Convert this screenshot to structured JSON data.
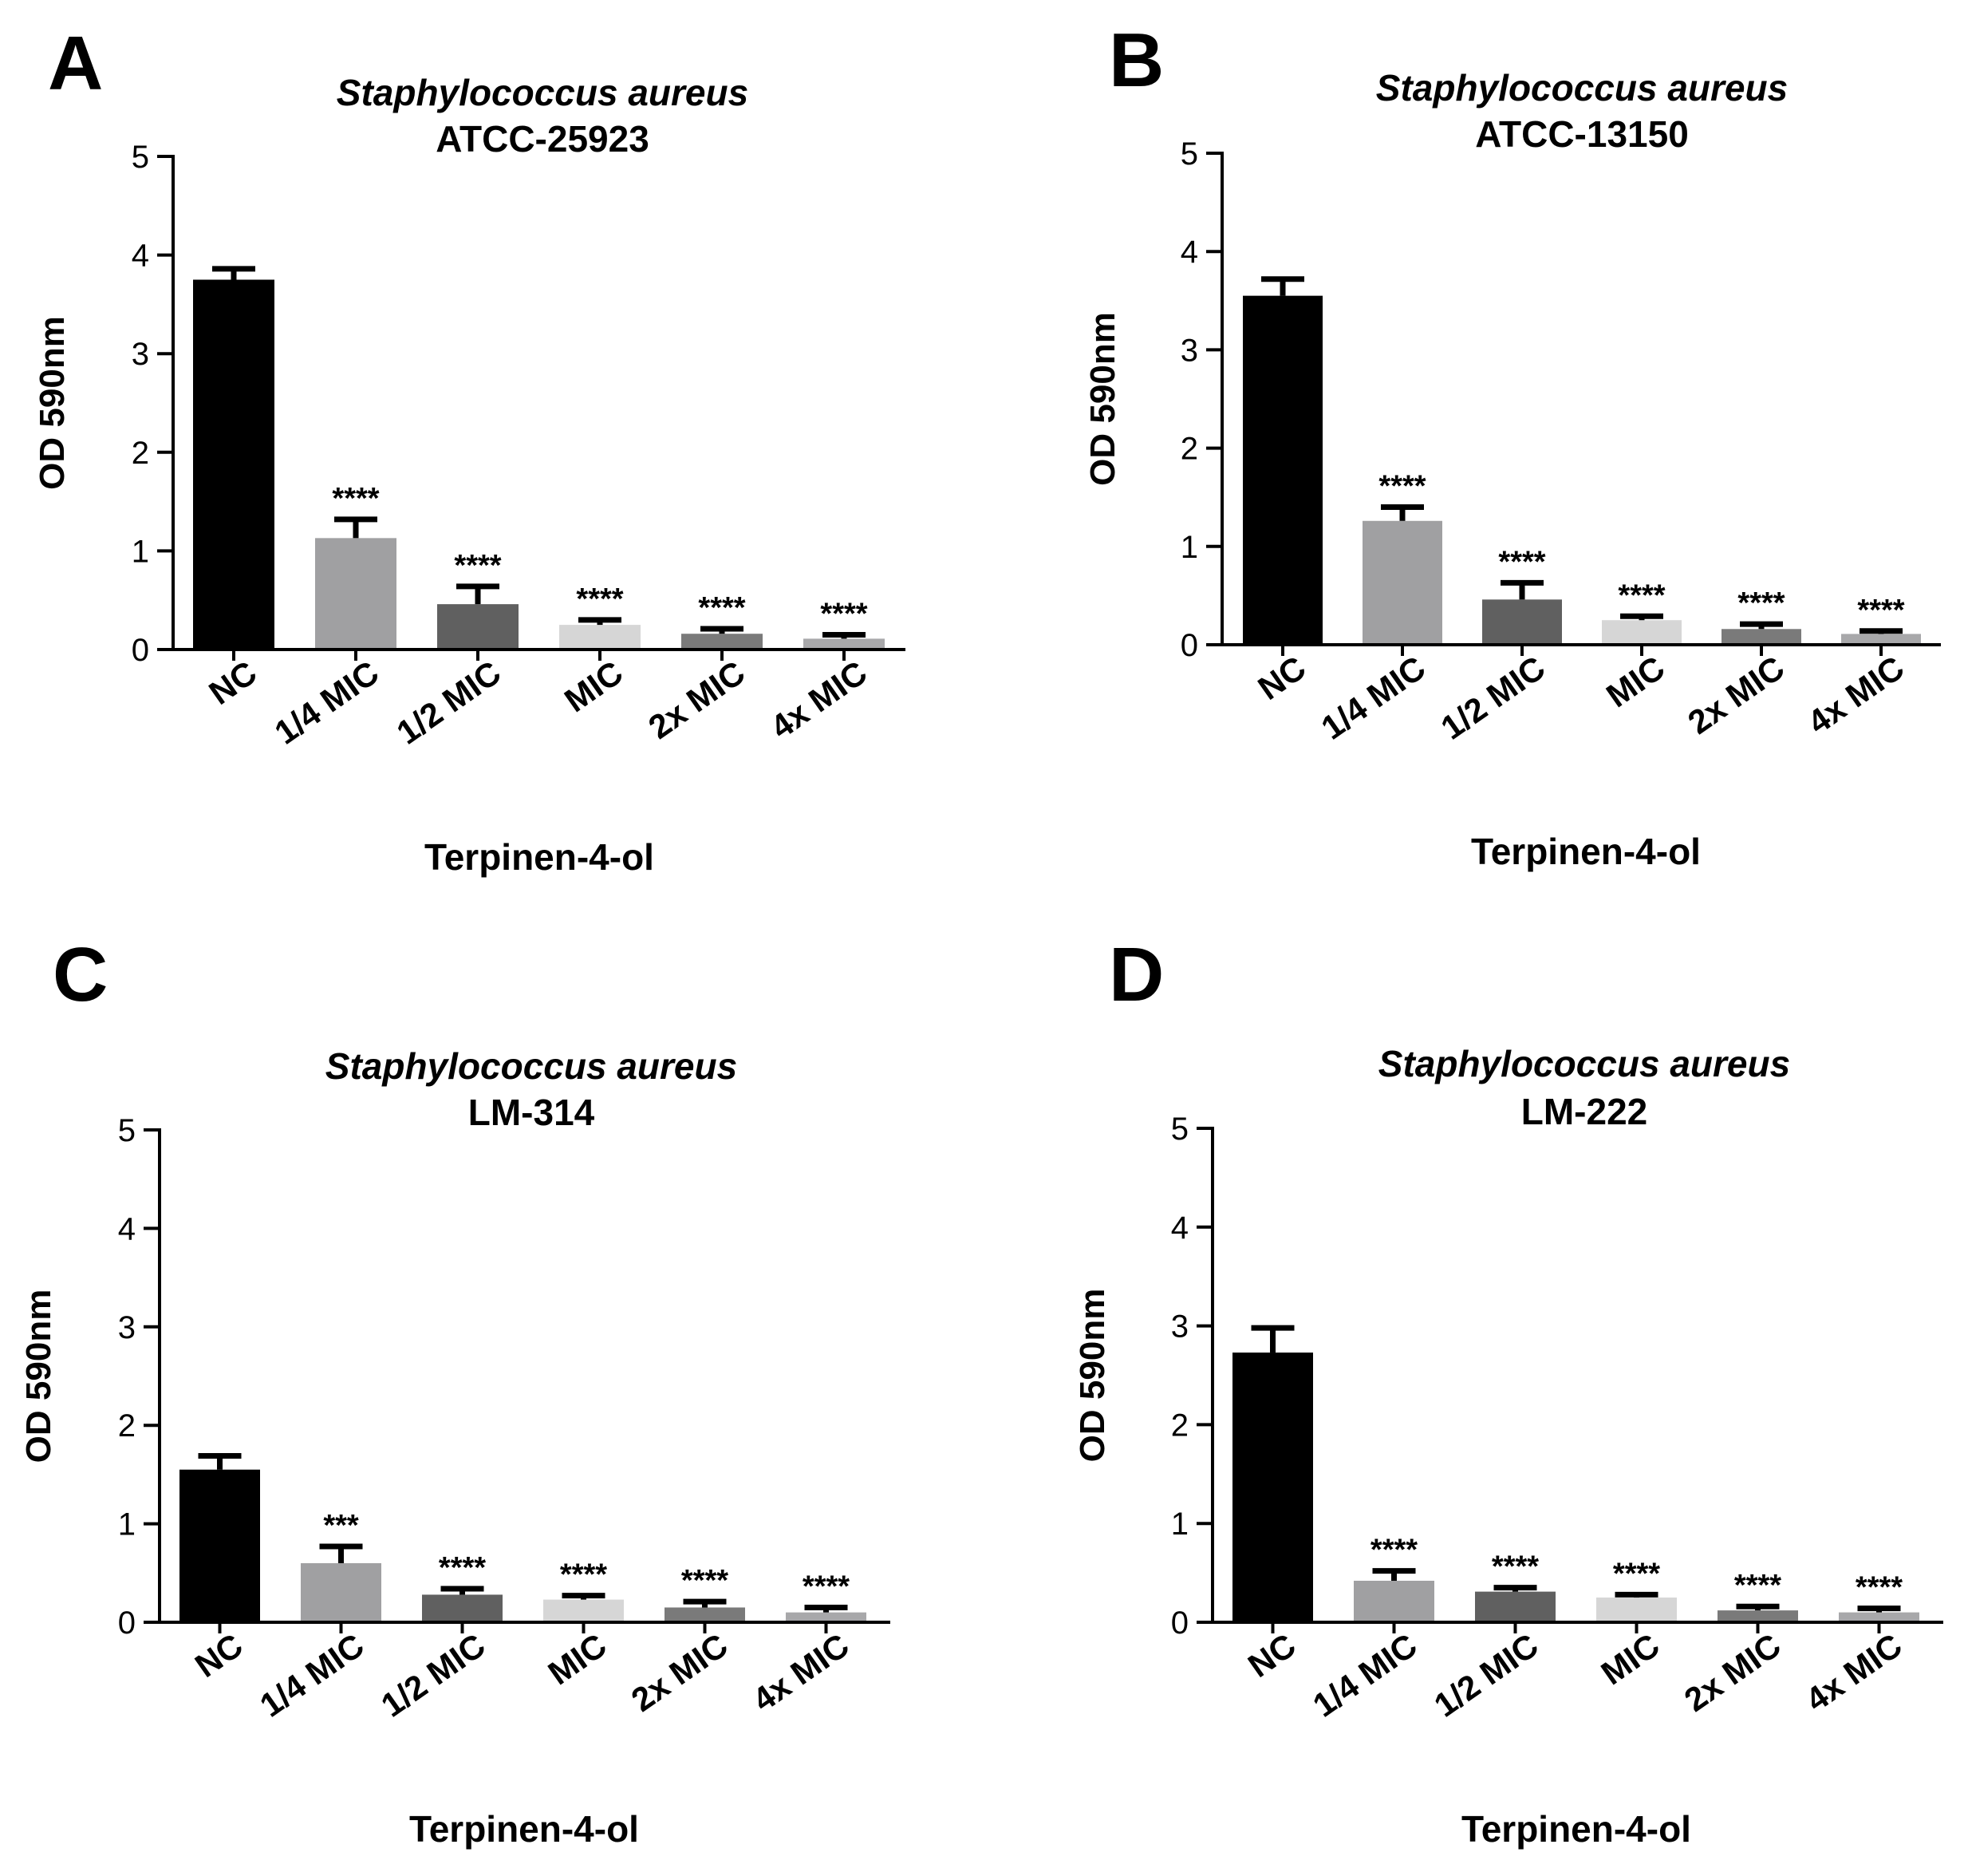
{
  "figure": {
    "bar_colors": [
      "#000000",
      "#a0a0a2",
      "#606060",
      "#d6d6d6",
      "#7a7a7a",
      "#a8a8aa"
    ]
  },
  "chart_data": [
    {
      "panel": "A",
      "type": "bar",
      "title_species": "Staphylococcus aureus",
      "title_strain": "ATCC-25923",
      "ylabel": "OD 590nm",
      "xlabel": "Terpinen-4-ol",
      "ylim": [
        0,
        5
      ],
      "yticks": [
        "0",
        "1",
        "2",
        "3",
        "4",
        "5"
      ],
      "categories": [
        "NC",
        "1/4 MIC",
        "1/2 MIC",
        "MIC",
        "2x MIC",
        "4x MIC"
      ],
      "values": [
        3.75,
        1.13,
        0.46,
        0.25,
        0.16,
        0.11
      ],
      "errors": [
        0.11,
        0.19,
        0.18,
        0.05,
        0.05,
        0.04
      ],
      "significance": [
        "",
        "****",
        "****",
        "****",
        "****",
        "****"
      ]
    },
    {
      "panel": "B",
      "type": "bar",
      "title_species": "Staphylococcus aureus",
      "title_strain": "ATCC-13150",
      "ylabel": "OD 590nm",
      "xlabel": "Terpinen-4-ol",
      "ylim": [
        0,
        5
      ],
      "yticks": [
        "0",
        "1",
        "2",
        "3",
        "4",
        "5"
      ],
      "categories": [
        "NC",
        "1/4 MIC",
        "1/2 MIC",
        "MIC",
        "2x MIC",
        "4x MIC"
      ],
      "values": [
        3.55,
        1.26,
        0.46,
        0.25,
        0.16,
        0.11
      ],
      "errors": [
        0.17,
        0.14,
        0.17,
        0.04,
        0.05,
        0.03
      ],
      "significance": [
        "",
        "****",
        "****",
        "****",
        "****",
        "****"
      ]
    },
    {
      "panel": "C",
      "type": "bar",
      "title_species": "Staphylococcus aureus",
      "title_strain": "LM-314",
      "ylabel": "OD 590nm",
      "xlabel": "Terpinen-4-ol",
      "ylim": [
        0,
        5
      ],
      "yticks": [
        "0",
        "1",
        "2",
        "3",
        "4",
        "5"
      ],
      "categories": [
        "NC",
        "1/4 MIC",
        "1/2 MIC",
        "MIC",
        "2x MIC",
        "4x MIC"
      ],
      "values": [
        1.55,
        0.6,
        0.28,
        0.23,
        0.15,
        0.1
      ],
      "errors": [
        0.14,
        0.17,
        0.06,
        0.04,
        0.06,
        0.05
      ],
      "significance": [
        "",
        "***",
        "****",
        "****",
        "****",
        "****"
      ]
    },
    {
      "panel": "D",
      "type": "bar",
      "title_species": "Staphylococcus aureus",
      "title_strain": "LM-222",
      "ylabel": "OD 590nm",
      "xlabel": "Terpinen-4-ol",
      "ylim": [
        0,
        5
      ],
      "yticks": [
        "0",
        "1",
        "2",
        "3",
        "4",
        "5"
      ],
      "categories": [
        "NC",
        "1/4 MIC",
        "1/2 MIC",
        "MIC",
        "2x MIC",
        "4x MIC"
      ],
      "values": [
        2.73,
        0.42,
        0.31,
        0.25,
        0.12,
        0.1
      ],
      "errors": [
        0.25,
        0.1,
        0.04,
        0.03,
        0.04,
        0.04
      ],
      "significance": [
        "",
        "****",
        "****",
        "****",
        "****",
        "****"
      ]
    }
  ]
}
